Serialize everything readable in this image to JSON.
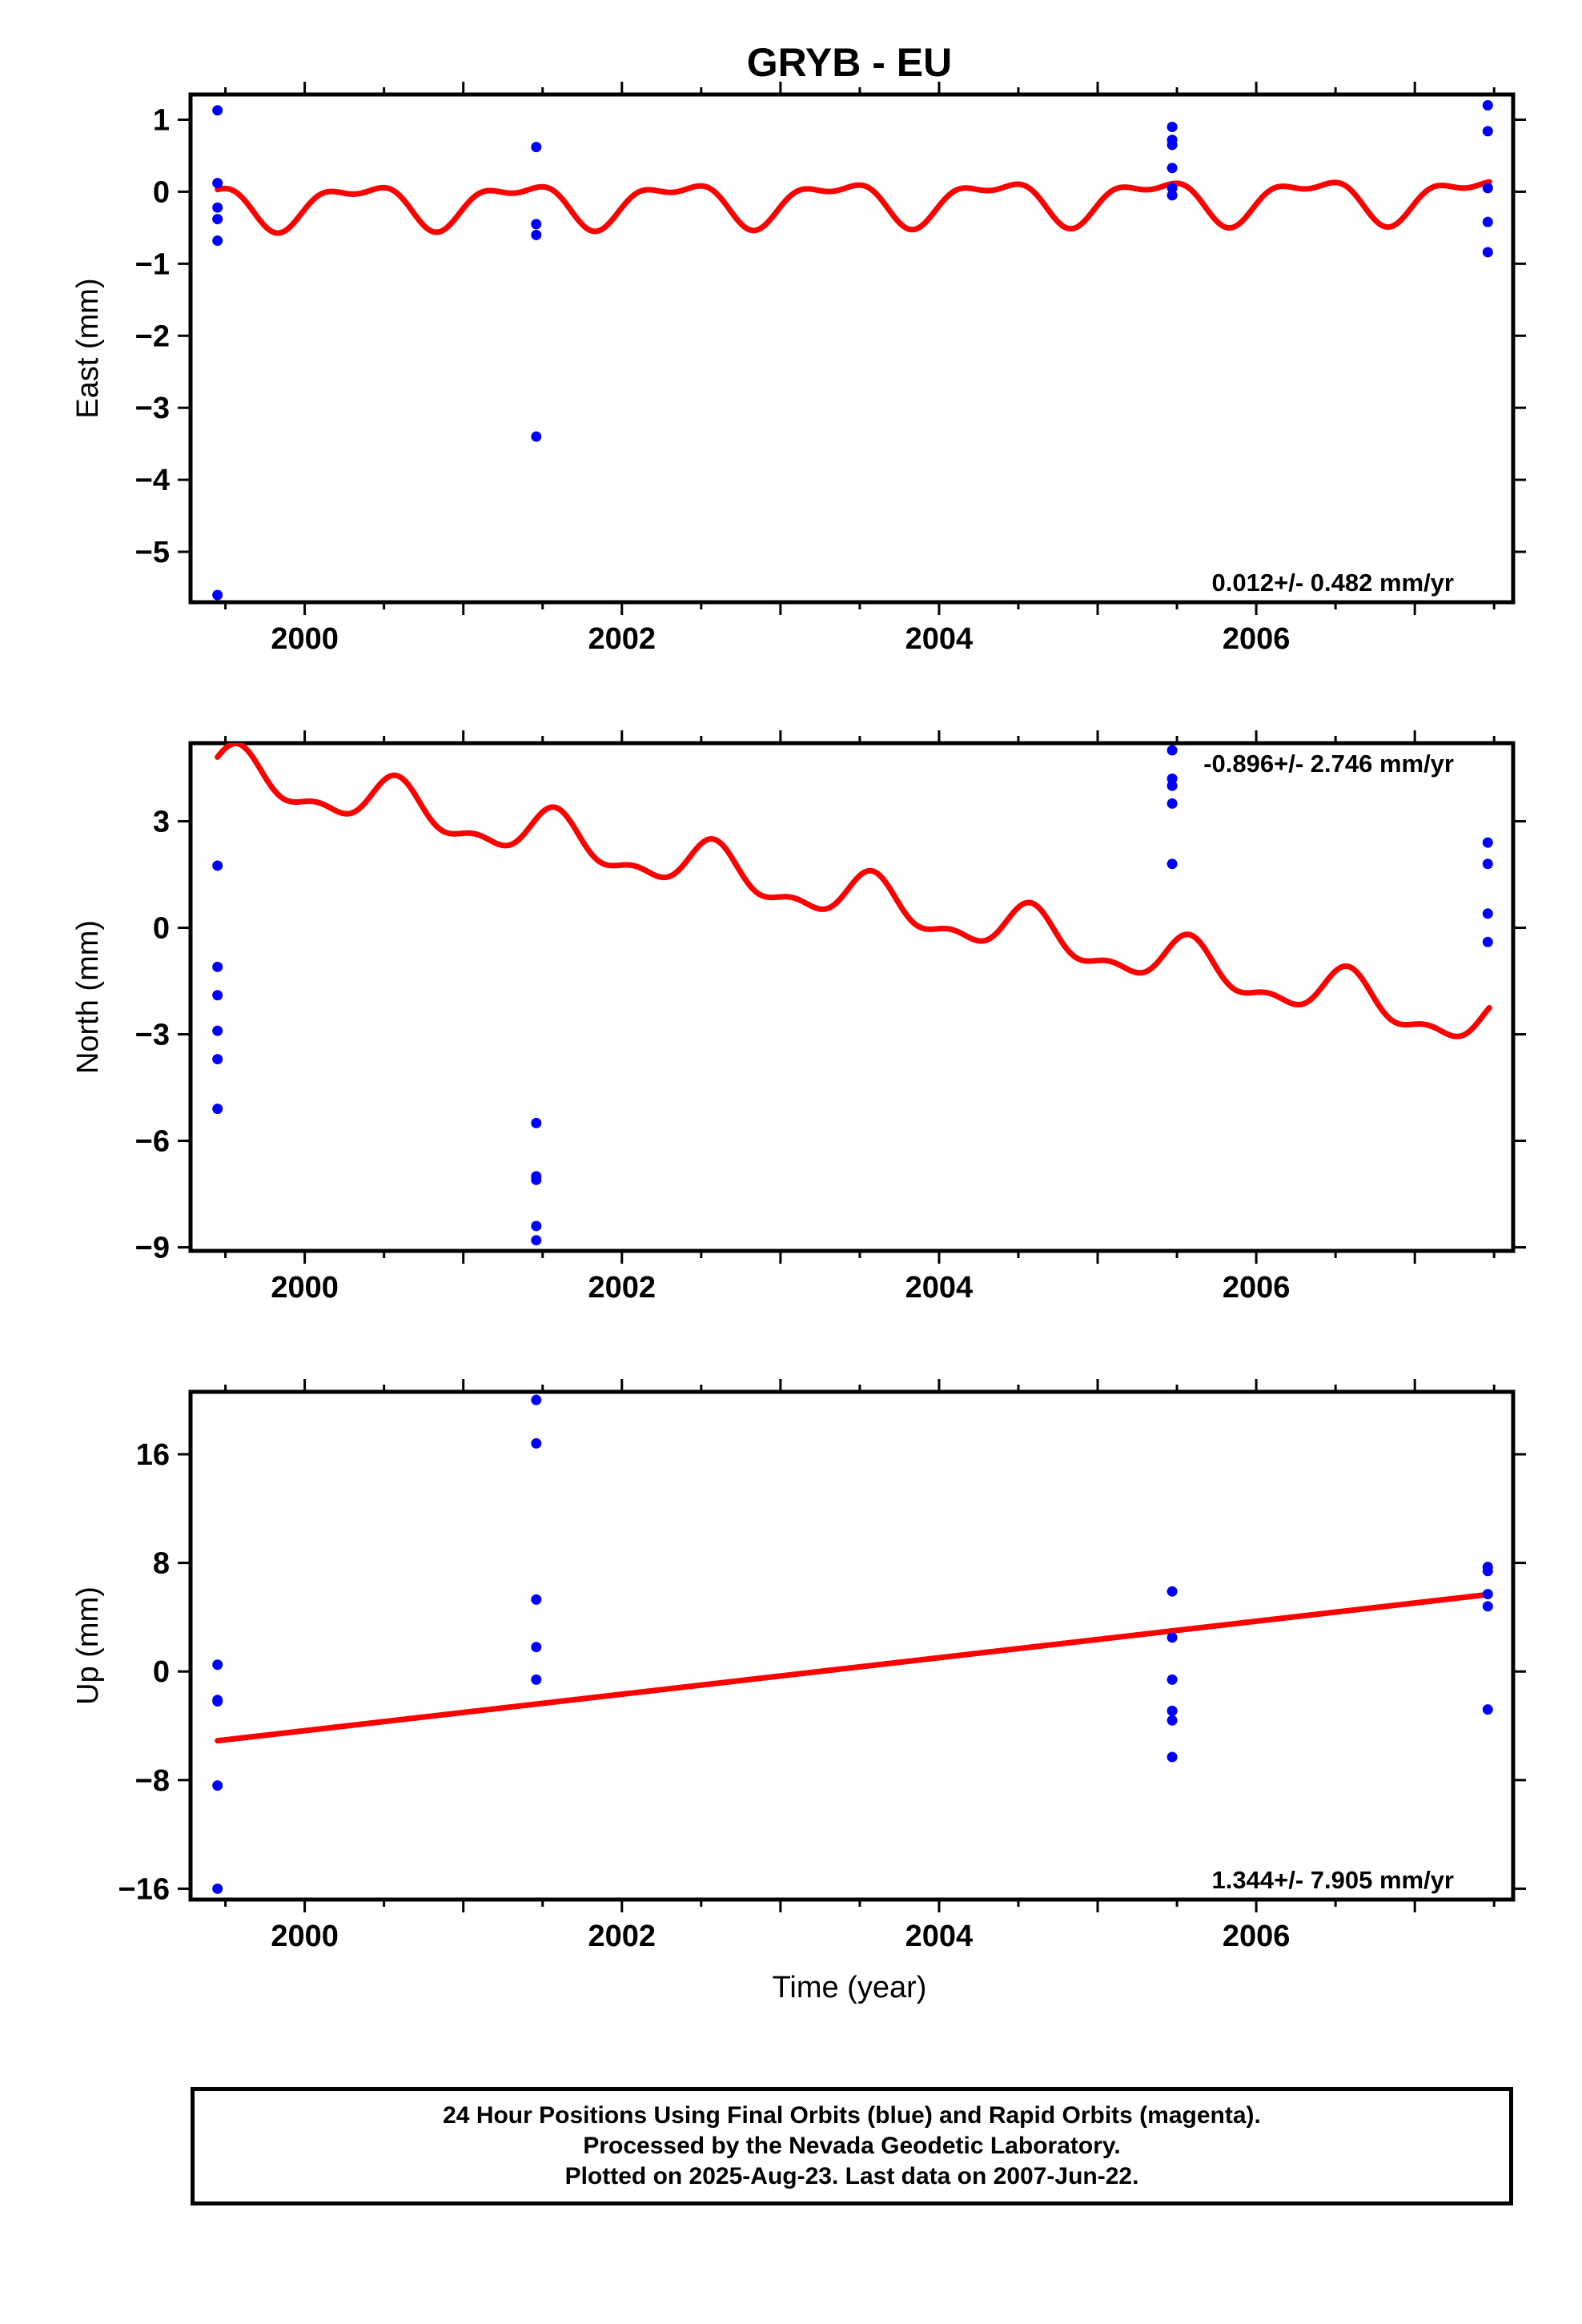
{
  "title": "GRYB - EU",
  "xlabel": "Time (year)",
  "caption": {
    "line1": "24 Hour Positions Using Final Orbits (blue) and Rapid Orbits (magenta).",
    "line2": "Processed by the Nevada Geodetic Laboratory.",
    "line3": "Plotted on 2025-Aug-23. Last data on 2007-Jun-22."
  },
  "colors": {
    "observations": "#0000ff",
    "model": "#ff0000",
    "axes": "#000000"
  },
  "chart_data": [
    {
      "type": "scatter",
      "ylabel": "East (mm)",
      "rate_text": "0.012+/- 0.482 mm/yr",
      "xlim": [
        1999.28,
        2007.62
      ],
      "ylim": [
        -5.7,
        1.35
      ],
      "xticks": [
        2000,
        2002,
        2004,
        2006
      ],
      "yticks": [
        1,
        0,
        -1,
        -2,
        -3,
        -4,
        -5
      ],
      "ytick_labels": [
        "1",
        "0",
        "−1",
        "−2",
        "−3",
        "−4",
        "−5"
      ],
      "points": [
        [
          1999.45,
          1.13
        ],
        [
          1999.45,
          0.12
        ],
        [
          1999.45,
          -0.22
        ],
        [
          1999.45,
          -0.38
        ],
        [
          1999.45,
          -0.68
        ],
        [
          1999.45,
          -5.6
        ],
        [
          2001.46,
          0.62
        ],
        [
          2001.46,
          -0.45
        ],
        [
          2001.46,
          -0.6
        ],
        [
          2001.46,
          -3.4
        ],
        [
          2005.47,
          0.9
        ],
        [
          2005.47,
          0.72
        ],
        [
          2005.47,
          0.65
        ],
        [
          2005.47,
          0.33
        ],
        [
          2005.47,
          0.05
        ],
        [
          2005.47,
          -0.05
        ],
        [
          2007.46,
          1.2
        ],
        [
          2007.46,
          0.84
        ],
        [
          2007.46,
          0.05
        ],
        [
          2007.46,
          -0.42
        ],
        [
          2007.46,
          -0.84
        ]
      ],
      "model": {
        "x_start": 1999.45,
        "x_end": 2007.47,
        "x_ref": 1999.45,
        "offset": -0.18,
        "rate": 0.012,
        "annual_amp": 0.27,
        "annual_phase": 2.25,
        "semi_amp": 0.13,
        "semi_phase": 0.0
      }
    },
    {
      "type": "scatter",
      "ylabel": "North (mm)",
      "rate_text": "-0.896+/- 2.746 mm/yr",
      "xlim": [
        1999.28,
        2007.62
      ],
      "ylim": [
        -9.1,
        5.2
      ],
      "xticks": [
        2000,
        2002,
        2004,
        2006
      ],
      "yticks": [
        3,
        0,
        -3,
        -6,
        -9
      ],
      "ytick_labels": [
        "3",
        "0",
        "−3",
        "−6",
        "−9"
      ],
      "points": [
        [
          1999.45,
          1.75
        ],
        [
          1999.45,
          -1.1
        ],
        [
          1999.45,
          -1.9
        ],
        [
          1999.45,
          -2.9
        ],
        [
          1999.45,
          -3.7
        ],
        [
          1999.45,
          -5.1
        ],
        [
          2001.46,
          -5.5
        ],
        [
          2001.46,
          -7.0
        ],
        [
          2001.46,
          -7.1
        ],
        [
          2001.46,
          -8.4
        ],
        [
          2001.46,
          -8.8
        ],
        [
          2005.47,
          5.0
        ],
        [
          2005.47,
          4.2
        ],
        [
          2005.47,
          4.0
        ],
        [
          2005.47,
          3.5
        ],
        [
          2005.47,
          1.8
        ],
        [
          2007.46,
          2.4
        ],
        [
          2007.46,
          1.8
        ],
        [
          2007.46,
          0.4
        ],
        [
          2007.46,
          -0.4
        ]
      ],
      "model": {
        "x_start": 1999.45,
        "x_end": 2007.47,
        "x_ref": 1999.45,
        "offset": 4.4,
        "rate": -0.896,
        "annual_amp": 0.6,
        "annual_phase": 0.75,
        "semi_amp": 0.3,
        "semi_phase": 0.0
      }
    },
    {
      "type": "scatter",
      "ylabel": "Up (mm)",
      "rate_text": "1.344+/- 7.905 mm/yr",
      "xlim": [
        1999.28,
        2007.62
      ],
      "ylim": [
        -16.8,
        20.6
      ],
      "xticks": [
        2000,
        2002,
        2004,
        2006
      ],
      "yticks": [
        16,
        8,
        0,
        -8,
        -16
      ],
      "ytick_labels": [
        "16",
        "8",
        "0",
        "−8",
        "−16"
      ],
      "points": [
        [
          1999.45,
          0.5
        ],
        [
          1999.45,
          -2.1
        ],
        [
          1999.45,
          -2.2
        ],
        [
          1999.45,
          -8.4
        ],
        [
          1999.45,
          -16.0
        ],
        [
          2001.46,
          20.0
        ],
        [
          2001.46,
          16.8
        ],
        [
          2001.46,
          5.3
        ],
        [
          2001.46,
          1.8
        ],
        [
          2001.46,
          -0.6
        ],
        [
          2005.47,
          5.9
        ],
        [
          2005.47,
          2.5
        ],
        [
          2005.47,
          -0.6
        ],
        [
          2005.47,
          -2.9
        ],
        [
          2005.47,
          -3.6
        ],
        [
          2005.47,
          -6.3
        ],
        [
          2007.46,
          7.7
        ],
        [
          2007.46,
          7.4
        ],
        [
          2007.46,
          5.7
        ],
        [
          2007.46,
          4.8
        ],
        [
          2007.46,
          -2.8
        ]
      ],
      "model": {
        "x_start": 1999.45,
        "x_end": 2007.47,
        "x_ref": 1999.45,
        "offset": -5.1,
        "rate": 1.344,
        "annual_amp": 0,
        "annual_phase": 0,
        "semi_amp": 0,
        "semi_phase": 0
      }
    }
  ]
}
